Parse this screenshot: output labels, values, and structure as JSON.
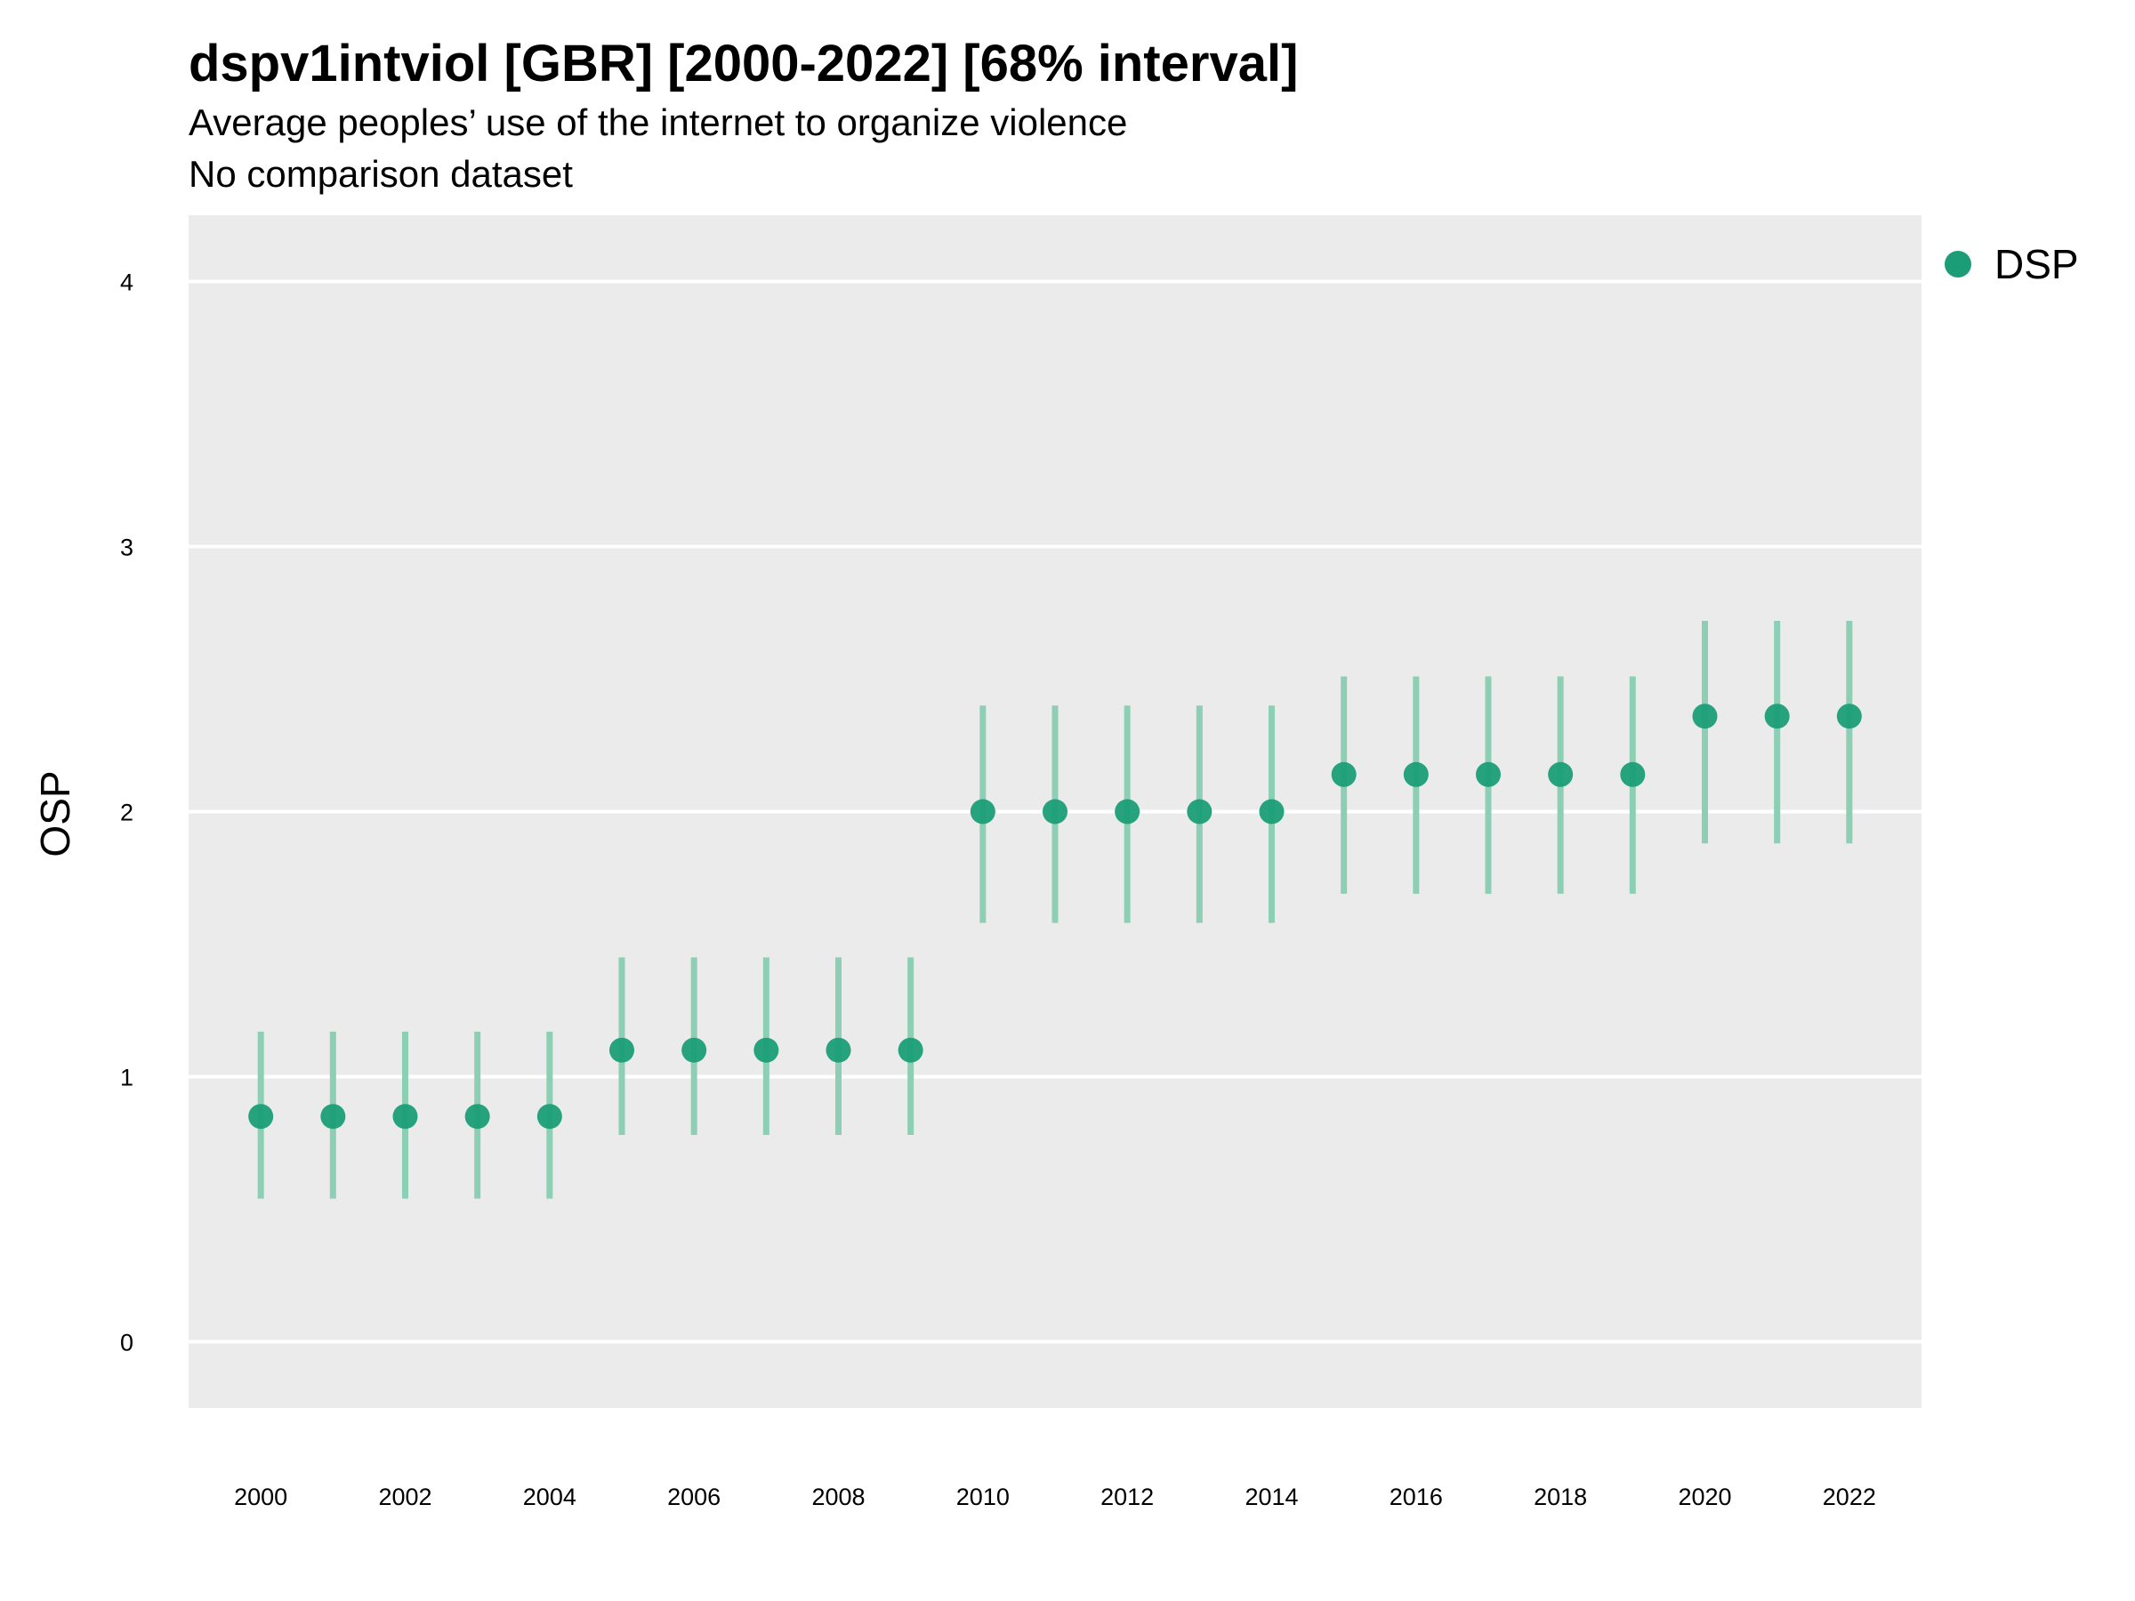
{
  "chart_data": {
    "type": "scatter",
    "title": "dspv1intviol [GBR] [2000-2022] [68% interval]",
    "subtitle_lines": [
      "Average peoples’ use of the internet to organize violence",
      "No comparison dataset"
    ],
    "xlabel": "",
    "ylabel": "OSP",
    "xlim": [
      1999,
      2023
    ],
    "ylim": [
      -0.25,
      4.25
    ],
    "x_ticks": [
      2000,
      2002,
      2004,
      2006,
      2008,
      2010,
      2012,
      2014,
      2016,
      2018,
      2020,
      2022
    ],
    "y_ticks": [
      0,
      1,
      2,
      3,
      4
    ],
    "grid": true,
    "legend_position": "right",
    "colors": {
      "point": "#1b9e77",
      "interval": "#8ccfb5",
      "panel_background": "#ebebeb",
      "gridline": "#ffffff"
    },
    "series": [
      {
        "name": "DSP",
        "x": [
          2000,
          2001,
          2002,
          2003,
          2004,
          2005,
          2006,
          2007,
          2008,
          2009,
          2010,
          2011,
          2012,
          2013,
          2014,
          2015,
          2016,
          2017,
          2018,
          2019,
          2020,
          2021,
          2022
        ],
        "y": [
          0.85,
          0.85,
          0.85,
          0.85,
          0.85,
          1.1,
          1.1,
          1.1,
          1.1,
          1.1,
          2.0,
          2.0,
          2.0,
          2.0,
          2.0,
          2.14,
          2.14,
          2.14,
          2.14,
          2.14,
          2.36,
          2.36,
          2.36
        ],
        "lower": [
          0.54,
          0.54,
          0.54,
          0.54,
          0.54,
          0.78,
          0.78,
          0.78,
          0.78,
          0.78,
          1.58,
          1.58,
          1.58,
          1.58,
          1.58,
          1.69,
          1.69,
          1.69,
          1.69,
          1.69,
          1.88,
          1.88,
          1.88
        ],
        "upper": [
          1.17,
          1.17,
          1.17,
          1.17,
          1.17,
          1.45,
          1.45,
          1.45,
          1.45,
          1.45,
          2.4,
          2.4,
          2.4,
          2.4,
          2.4,
          2.51,
          2.51,
          2.51,
          2.51,
          2.51,
          2.72,
          2.72,
          2.72
        ]
      }
    ]
  }
}
